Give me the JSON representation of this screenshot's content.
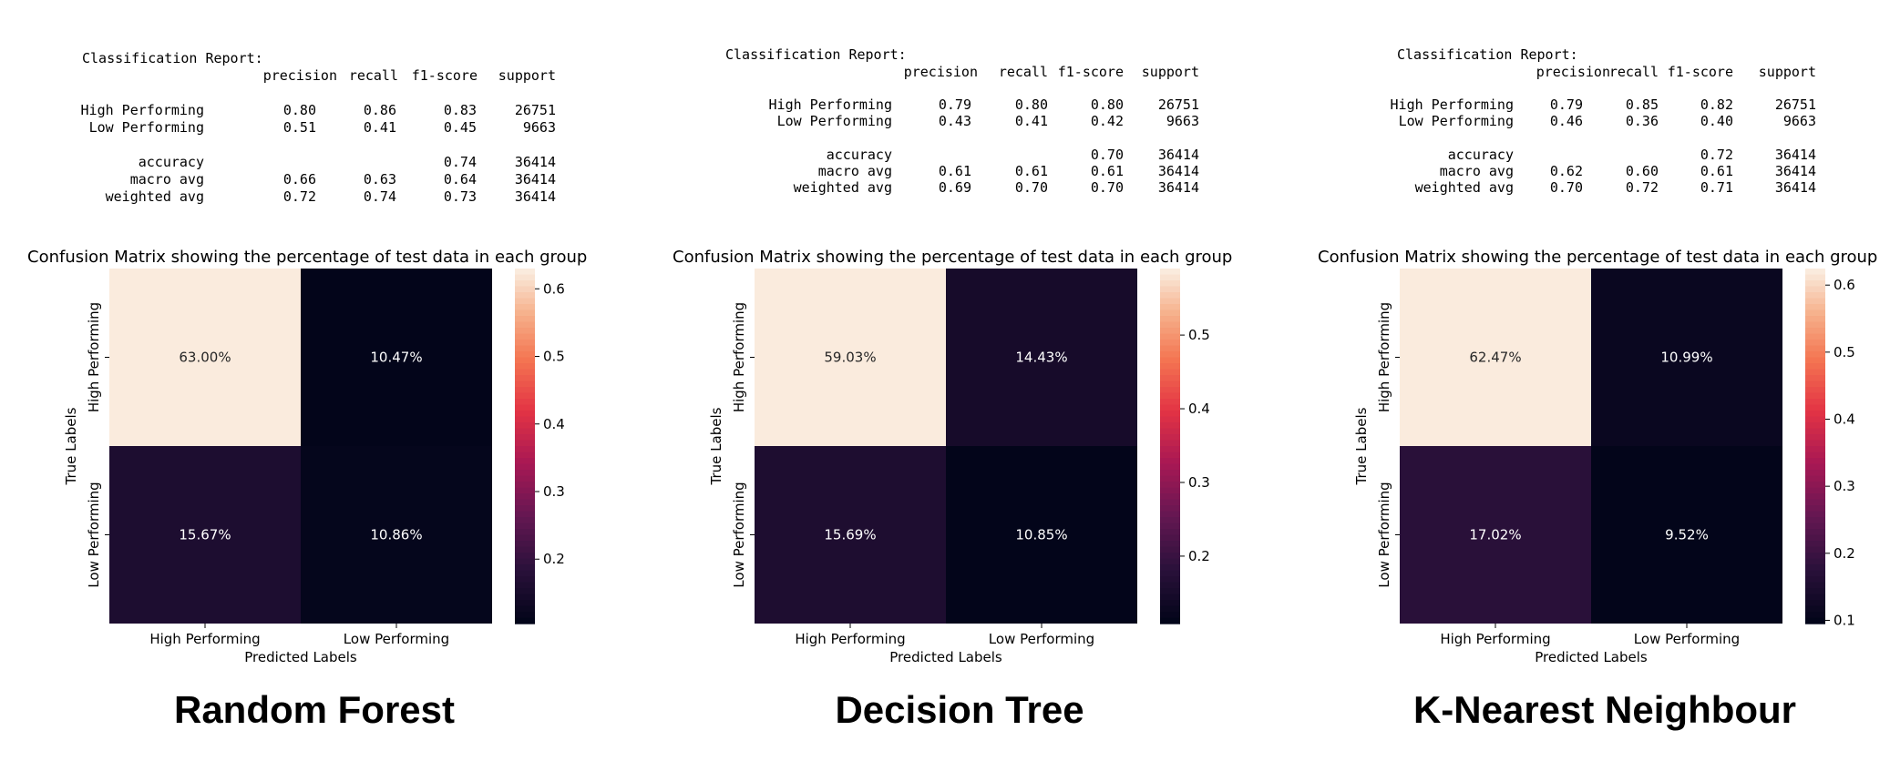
{
  "panels": [
    {
      "name": "Random Forest",
      "report": {
        "title": "Classification Report:",
        "headers": [
          "precision",
          "recall",
          "f1-score",
          "support"
        ],
        "rows": [
          {
            "label": "High Performing",
            "values": [
              "0.80",
              "0.86",
              "0.83",
              "26751"
            ]
          },
          {
            "label": "Low Performing",
            "values": [
              "0.51",
              "0.41",
              "0.45",
              "9663"
            ]
          },
          {
            "label": "accuracy",
            "values": [
              "",
              "",
              "0.74",
              "36414"
            ]
          },
          {
            "label": "macro avg",
            "values": [
              "0.66",
              "0.63",
              "0.64",
              "36414"
            ]
          },
          {
            "label": "weighted avg",
            "values": [
              "0.72",
              "0.74",
              "0.73",
              "36414"
            ]
          }
        ]
      },
      "chart": {
        "title": "Confusion Matrix showing the percentage of test data in each group",
        "xlabel": "Predicted Labels",
        "ylabel": "True Labels",
        "x_ticks": [
          "High Performing",
          "Low Performing"
        ],
        "y_ticks": [
          "High Performing",
          "Low Performing"
        ],
        "cells": [
          [
            0.63,
            0.1047
          ],
          [
            0.1567,
            0.1086
          ]
        ],
        "cell_labels": [
          [
            "63.00%",
            "10.47%"
          ],
          [
            "15.67%",
            "10.86%"
          ]
        ],
        "colorbar_ticks": [
          "0.6",
          "0.5",
          "0.4",
          "0.3",
          "0.2"
        ],
        "colorbar_tick_values": [
          0.6,
          0.5,
          0.4,
          0.3,
          0.2
        ],
        "colorbar_range": [
          0.1047,
          0.63
        ]
      }
    },
    {
      "name": "Decision Tree",
      "report": {
        "title": "Classification Report:",
        "headers": [
          "precision",
          "recall",
          "f1-score",
          "support"
        ],
        "rows": [
          {
            "label": "High Performing",
            "values": [
              "0.79",
              "0.80",
              "0.80",
              "26751"
            ]
          },
          {
            "label": "Low Performing",
            "values": [
              "0.43",
              "0.41",
              "0.42",
              "9663"
            ]
          },
          {
            "label": "accuracy",
            "values": [
              "",
              "",
              "0.70",
              "36414"
            ]
          },
          {
            "label": "macro avg",
            "values": [
              "0.61",
              "0.61",
              "0.61",
              "36414"
            ]
          },
          {
            "label": "weighted avg",
            "values": [
              "0.69",
              "0.70",
              "0.70",
              "36414"
            ]
          }
        ]
      },
      "chart": {
        "title": "Confusion Matrix showing the percentage of test data in each group",
        "xlabel": "Predicted Labels",
        "ylabel": "True Labels",
        "x_ticks": [
          "High Performing",
          "Low Performing"
        ],
        "y_ticks": [
          "High Performing",
          "Low Performing"
        ],
        "cells": [
          [
            0.5903,
            0.1443
          ],
          [
            0.1569,
            0.1085
          ]
        ],
        "cell_labels": [
          [
            "59.03%",
            "14.43%"
          ],
          [
            "15.69%",
            "10.85%"
          ]
        ],
        "colorbar_ticks": [
          "0.5",
          "0.4",
          "0.3",
          "0.2"
        ],
        "colorbar_tick_values": [
          0.5,
          0.4,
          0.3,
          0.2
        ],
        "colorbar_range": [
          0.1085,
          0.5903
        ]
      }
    },
    {
      "name": "K-Nearest Neighbour",
      "report": {
        "title": "Classification Report:",
        "headers": [
          "precision",
          "recall",
          "f1-score",
          "support"
        ],
        "rows": [
          {
            "label": "High Performing",
            "values": [
              "0.79",
              "0.85",
              "0.82",
              "26751"
            ]
          },
          {
            "label": "Low Performing",
            "values": [
              "0.46",
              "0.36",
              "0.40",
              "9663"
            ]
          },
          {
            "label": "accuracy",
            "values": [
              "",
              "",
              "0.72",
              "36414"
            ]
          },
          {
            "label": "macro avg",
            "values": [
              "0.62",
              "0.60",
              "0.61",
              "36414"
            ]
          },
          {
            "label": "weighted avg",
            "values": [
              "0.70",
              "0.72",
              "0.71",
              "36414"
            ]
          }
        ]
      },
      "chart": {
        "title": "Confusion Matrix showing the percentage of test data in each group",
        "xlabel": "Predicted Labels",
        "ylabel": "True Labels",
        "x_ticks": [
          "High Performing",
          "Low Performing"
        ],
        "y_ticks": [
          "High Performing",
          "Low Performing"
        ],
        "cells": [
          [
            0.6247,
            0.1099
          ],
          [
            0.1702,
            0.0952
          ]
        ],
        "cell_labels": [
          [
            "62.47%",
            "10.99%"
          ],
          [
            "17.02%",
            "9.52%"
          ]
        ],
        "colorbar_ticks": [
          "0.6",
          "0.5",
          "0.4",
          "0.3",
          "0.2",
          "0.1"
        ],
        "colorbar_tick_values": [
          0.6,
          0.5,
          0.4,
          0.3,
          0.2,
          0.1
        ],
        "colorbar_range": [
          0.0952,
          0.6247
        ]
      }
    }
  ],
  "chart_data": [
    {
      "type": "heatmap",
      "title": "Confusion Matrix showing the percentage of test data in each group",
      "xlabel": "Predicted Labels",
      "ylabel": "True Labels",
      "x": [
        "High Performing",
        "Low Performing"
      ],
      "y": [
        "High Performing",
        "Low Performing"
      ],
      "values": [
        [
          63.0,
          10.47
        ],
        [
          15.67,
          10.86
        ]
      ],
      "colorbar_ticks": [
        0.6,
        0.5,
        0.4,
        0.3,
        0.2
      ]
    },
    {
      "type": "heatmap",
      "title": "Confusion Matrix showing the percentage of test data in each group",
      "xlabel": "Predicted Labels",
      "ylabel": "True Labels",
      "x": [
        "High Performing",
        "Low Performing"
      ],
      "y": [
        "High Performing",
        "Low Performing"
      ],
      "values": [
        [
          59.03,
          14.43
        ],
        [
          15.69,
          10.85
        ]
      ],
      "colorbar_ticks": [
        0.5,
        0.4,
        0.3,
        0.2
      ]
    },
    {
      "type": "heatmap",
      "title": "Confusion Matrix showing the percentage of test data in each group",
      "xlabel": "Predicted Labels",
      "ylabel": "True Labels",
      "x": [
        "High Performing",
        "Low Performing"
      ],
      "y": [
        "High Performing",
        "Low Performing"
      ],
      "values": [
        [
          62.47,
          10.99
        ],
        [
          17.02,
          9.52
        ]
      ],
      "colorbar_ticks": [
        0.6,
        0.5,
        0.4,
        0.3,
        0.2,
        0.1
      ]
    }
  ]
}
